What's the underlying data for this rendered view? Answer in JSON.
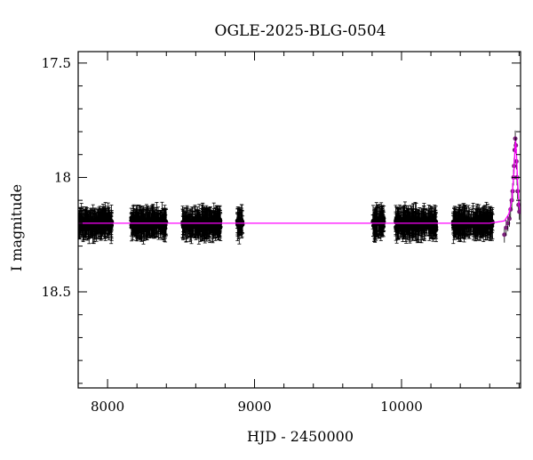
{
  "chart_data": {
    "type": "scatter",
    "title": "OGLE-2025-BLG-0504",
    "xlabel": "HJD - 2450000",
    "ylabel": "I magnitude",
    "xlim": [
      7800,
      10810
    ],
    "ylim": [
      18.92,
      17.45
    ],
    "y_inverted": true,
    "grid": false,
    "legend": "none",
    "x_ticks": [
      "8000",
      "9000",
      "10000"
    ],
    "y_ticks": [
      "17.5",
      "18",
      "18.5"
    ],
    "baseline_magnitude": 18.2,
    "colors": {
      "points": "#000000",
      "model": "#ff00ff",
      "peak_points": "#7a1f7a"
    },
    "observing_seasons": [
      {
        "start": 7800,
        "end": 8030,
        "mean_mag": 18.2
      },
      {
        "start": 8160,
        "end": 8400,
        "mean_mag": 18.2
      },
      {
        "start": 8510,
        "end": 8770,
        "mean_mag": 18.2
      },
      {
        "start": 8880,
        "end": 8920,
        "mean_mag": 18.2
      },
      {
        "start": 9800,
        "end": 9880,
        "mean_mag": 18.2
      },
      {
        "start": 9960,
        "end": 10240,
        "mean_mag": 18.2
      },
      {
        "start": 10350,
        "end": 10620,
        "mean_mag": 18.2
      }
    ],
    "event_points": [
      {
        "x": 10700,
        "y": 18.25
      },
      {
        "x": 10712,
        "y": 18.22
      },
      {
        "x": 10724,
        "y": 18.2
      },
      {
        "x": 10734,
        "y": 18.18
      },
      {
        "x": 10742,
        "y": 18.14
      },
      {
        "x": 10750,
        "y": 18.1
      },
      {
        "x": 10756,
        "y": 18.06
      },
      {
        "x": 10762,
        "y": 18.0
      },
      {
        "x": 10766,
        "y": 17.95
      },
      {
        "x": 10770,
        "y": 17.88
      },
      {
        "x": 10774,
        "y": 17.83
      },
      {
        "x": 10778,
        "y": 17.86
      },
      {
        "x": 10782,
        "y": 17.93
      },
      {
        "x": 10786,
        "y": 18.0
      },
      {
        "x": 10790,
        "y": 18.06
      },
      {
        "x": 10796,
        "y": 18.12
      },
      {
        "x": 10802,
        "y": 18.15
      }
    ],
    "model_curve": [
      {
        "x": 7800,
        "y": 18.2
      },
      {
        "x": 10600,
        "y": 18.2
      },
      {
        "x": 10700,
        "y": 18.19
      },
      {
        "x": 10730,
        "y": 18.16
      },
      {
        "x": 10750,
        "y": 18.1
      },
      {
        "x": 10762,
        "y": 18.0
      },
      {
        "x": 10770,
        "y": 17.9
      },
      {
        "x": 10776,
        "y": 17.84
      },
      {
        "x": 10782,
        "y": 17.9
      },
      {
        "x": 10790,
        "y": 18.02
      },
      {
        "x": 10800,
        "y": 18.12
      },
      {
        "x": 10810,
        "y": 18.16
      }
    ]
  }
}
